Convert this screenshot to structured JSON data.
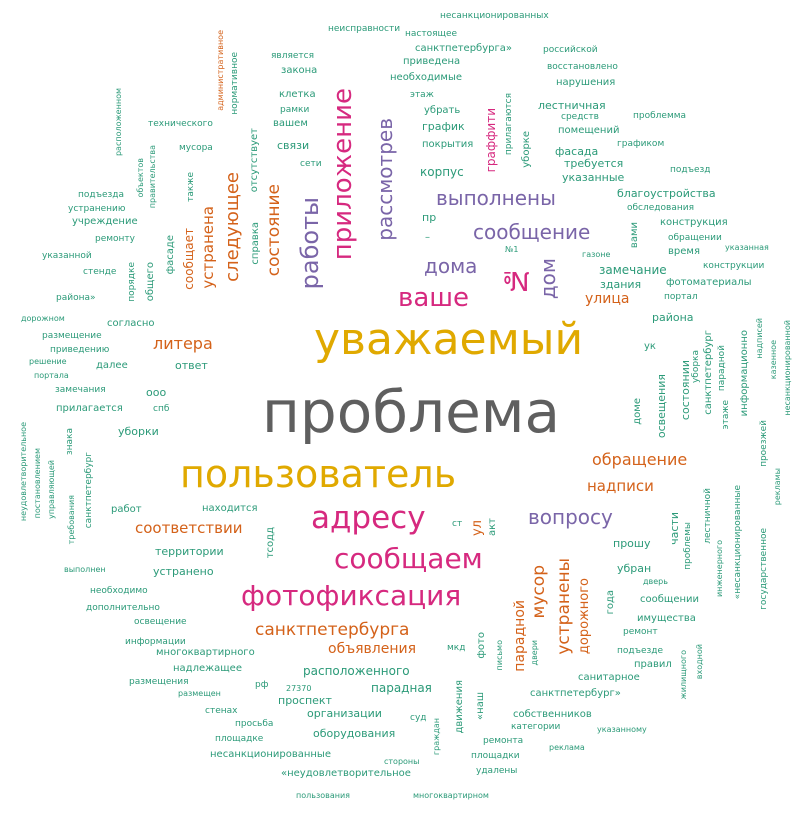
{
  "palette": {
    "grey": "#5f5f5f",
    "gold": "#e0a900",
    "magenta": "#d6297f",
    "purple": "#7a65a8",
    "orange": "#d4621a",
    "green": "#2b9a78"
  },
  "words": [
    {
      "text": "проблема",
      "color": "grey"
    },
    {
      "text": "уважаемый",
      "color": "gold"
    },
    {
      "text": "пользователь",
      "color": "gold"
    },
    {
      "text": "адресу",
      "color": "magenta"
    },
    {
      "text": "сообщаем",
      "color": "magenta"
    },
    {
      "text": "фотофиксация",
      "color": "magenta"
    },
    {
      "text": "ваше",
      "color": "magenta"
    },
    {
      "text": "приложение",
      "color": "magenta"
    },
    {
      "text": "№",
      "color": "magenta"
    },
    {
      "text": "работы",
      "color": "purple"
    },
    {
      "text": "рассмотрев",
      "color": "purple"
    },
    {
      "text": "выполнены",
      "color": "purple"
    },
    {
      "text": "сообщение",
      "color": "purple"
    },
    {
      "text": "дома",
      "color": "purple"
    },
    {
      "text": "дом",
      "color": "purple"
    },
    {
      "text": "вопросу",
      "color": "purple"
    },
    {
      "text": "следующее",
      "color": "orange"
    },
    {
      "text": "состояние",
      "color": "orange"
    },
    {
      "text": "устранена",
      "color": "orange"
    },
    {
      "text": "литера",
      "color": "orange"
    },
    {
      "text": "санктпетербурга",
      "color": "orange"
    },
    {
      "text": "обращение",
      "color": "orange"
    },
    {
      "text": "надписи",
      "color": "orange"
    },
    {
      "text": "соответствии",
      "color": "orange"
    },
    {
      "text": "мусор",
      "color": "orange"
    },
    {
      "text": "устранены",
      "color": "orange"
    },
    {
      "text": "улица",
      "color": "orange"
    },
    {
      "text": "объявления",
      "color": "orange"
    },
    {
      "text": "парадной",
      "color": "orange"
    },
    {
      "text": "дорожного",
      "color": "orange"
    },
    {
      "text": "ул",
      "color": "orange"
    },
    {
      "text": "неисправности",
      "color": "green"
    },
    {
      "text": "несанкционированных",
      "color": "green"
    },
    {
      "text": "настоящее",
      "color": "green"
    },
    {
      "text": "санктпетербурга»",
      "color": "green"
    },
    {
      "text": "российской",
      "color": "green"
    },
    {
      "text": "является",
      "color": "green"
    },
    {
      "text": "приведена",
      "color": "green"
    },
    {
      "text": "восстановлено",
      "color": "green"
    },
    {
      "text": "закона",
      "color": "green"
    },
    {
      "text": "необходимые",
      "color": "green"
    },
    {
      "text": "нарушения",
      "color": "green"
    },
    {
      "text": "клетка",
      "color": "green"
    },
    {
      "text": "этаж",
      "color": "green"
    },
    {
      "text": "рамки",
      "color": "green"
    },
    {
      "text": "убрать",
      "color": "green"
    },
    {
      "text": "лестничная",
      "color": "green"
    },
    {
      "text": "средств",
      "color": "green"
    },
    {
      "text": "проблемма",
      "color": "green"
    },
    {
      "text": "вашем",
      "color": "green"
    },
    {
      "text": "график",
      "color": "green"
    },
    {
      "text": "помещений",
      "color": "green"
    },
    {
      "text": "технического",
      "color": "green"
    },
    {
      "text": "мусора",
      "color": "green"
    },
    {
      "text": "связи",
      "color": "green"
    },
    {
      "text": "покрытия",
      "color": "green"
    },
    {
      "text": "графиком",
      "color": "green"
    },
    {
      "text": "фасада",
      "color": "green"
    },
    {
      "text": "сети",
      "color": "green"
    },
    {
      "text": "требуется",
      "color": "green"
    },
    {
      "text": "корпус",
      "color": "green"
    },
    {
      "text": "подъезд",
      "color": "green"
    },
    {
      "text": "указанные",
      "color": "green"
    },
    {
      "text": "благоустройства",
      "color": "green"
    },
    {
      "text": "подъезда",
      "color": "green"
    },
    {
      "text": "обследования",
      "color": "green"
    },
    {
      "text": "устранению",
      "color": "green"
    },
    {
      "text": "пр",
      "color": "green"
    },
    {
      "text": "конструкция",
      "color": "green"
    },
    {
      "text": "учреждение",
      "color": "green"
    },
    {
      "text": "ремонту",
      "color": "green"
    },
    {
      "text": "–",
      "color": "green"
    },
    {
      "text": "обращении",
      "color": "green"
    },
    {
      "text": "время",
      "color": "green"
    },
    {
      "text": "указанная",
      "color": "green"
    },
    {
      "text": "№1",
      "color": "green"
    },
    {
      "text": "указанной",
      "color": "green"
    },
    {
      "text": "газоне",
      "color": "green"
    },
    {
      "text": "конструкции",
      "color": "green"
    },
    {
      "text": "стенде",
      "color": "green"
    },
    {
      "text": "замечание",
      "color": "green"
    },
    {
      "text": "здания",
      "color": "green"
    },
    {
      "text": "фотоматериалы",
      "color": "green"
    },
    {
      "text": "района»",
      "color": "green"
    },
    {
      "text": "портал",
      "color": "green"
    },
    {
      "text": "дорожном",
      "color": "green"
    },
    {
      "text": "района",
      "color": "green"
    },
    {
      "text": "согласно",
      "color": "green"
    },
    {
      "text": "размещение",
      "color": "green"
    },
    {
      "text": "решение",
      "color": "green"
    },
    {
      "text": "приведению",
      "color": "green"
    },
    {
      "text": "далее",
      "color": "green"
    },
    {
      "text": "ответ",
      "color": "green"
    },
    {
      "text": "портала",
      "color": "green"
    },
    {
      "text": "ук",
      "color": "green"
    },
    {
      "text": "замечания",
      "color": "green"
    },
    {
      "text": "ооо",
      "color": "green"
    },
    {
      "text": "прилагается",
      "color": "green"
    },
    {
      "text": "спб",
      "color": "green"
    },
    {
      "text": "уборки",
      "color": "green"
    },
    {
      "text": "работ",
      "color": "green"
    },
    {
      "text": "находится",
      "color": "green"
    },
    {
      "text": "ст",
      "color": "green"
    },
    {
      "text": "акт",
      "color": "green"
    },
    {
      "text": "территории",
      "color": "green"
    },
    {
      "text": "прошу",
      "color": "green"
    },
    {
      "text": "устранено",
      "color": "green"
    },
    {
      "text": "убран",
      "color": "green"
    },
    {
      "text": "выполнен",
      "color": "green"
    },
    {
      "text": "необходимо",
      "color": "green"
    },
    {
      "text": "дверь",
      "color": "green"
    },
    {
      "text": "дополнительно",
      "color": "green"
    },
    {
      "text": "сообщении",
      "color": "green"
    },
    {
      "text": "освещение",
      "color": "green"
    },
    {
      "text": "имущества",
      "color": "green"
    },
    {
      "text": "информации",
      "color": "green"
    },
    {
      "text": "ремонт",
      "color": "green"
    },
    {
      "text": "многоквартирного",
      "color": "green"
    },
    {
      "text": "надлежащее",
      "color": "green"
    },
    {
      "text": "мкд",
      "color": "green"
    },
    {
      "text": "подъезде",
      "color": "green"
    },
    {
      "text": "правил",
      "color": "green"
    },
    {
      "text": "размещения",
      "color": "green"
    },
    {
      "text": "расположенного",
      "color": "green"
    },
    {
      "text": "санитарное",
      "color": "green"
    },
    {
      "text": "размещен",
      "color": "green"
    },
    {
      "text": "рф",
      "color": "green"
    },
    {
      "text": "парадная",
      "color": "green"
    },
    {
      "text": "27370",
      "color": "green"
    },
    {
      "text": "санктпетербург»",
      "color": "green"
    },
    {
      "text": "проспект",
      "color": "green"
    },
    {
      "text": "стенах",
      "color": "green"
    },
    {
      "text": "организации",
      "color": "green"
    },
    {
      "text": "собственников",
      "color": "green"
    },
    {
      "text": "просьба",
      "color": "green"
    },
    {
      "text": "суд",
      "color": "green"
    },
    {
      "text": "категории",
      "color": "green"
    },
    {
      "text": "площадке",
      "color": "green"
    },
    {
      "text": "оборудования",
      "color": "green"
    },
    {
      "text": "указанному",
      "color": "green"
    },
    {
      "text": "ремонта",
      "color": "green"
    },
    {
      "text": "несанкционированные",
      "color": "green"
    },
    {
      "text": "площадки",
      "color": "green"
    },
    {
      "text": "реклама",
      "color": "green"
    },
    {
      "text": "стороны",
      "color": "green"
    },
    {
      "text": "«неудовлетворительное",
      "color": "green"
    },
    {
      "text": "удалены",
      "color": "green"
    },
    {
      "text": "пользования",
      "color": "green"
    },
    {
      "text": "многоквартирном",
      "color": "green"
    },
    {
      "text": "административное",
      "color": "orange"
    },
    {
      "text": "нормативное",
      "color": "green"
    },
    {
      "text": "расположенном",
      "color": "green"
    },
    {
      "text": "объектов",
      "color": "green"
    },
    {
      "text": "правительства",
      "color": "green"
    },
    {
      "text": "также",
      "color": "green"
    },
    {
      "text": "отсутствует",
      "color": "green"
    },
    {
      "text": "справка",
      "color": "green"
    },
    {
      "text": "порядке",
      "color": "green"
    },
    {
      "text": "общего",
      "color": "green"
    },
    {
      "text": "фасаде",
      "color": "green"
    },
    {
      "text": "сообщает",
      "color": "orange"
    },
    {
      "text": "граффити",
      "color": "magenta"
    },
    {
      "text": "прилагаются",
      "color": "green"
    },
    {
      "text": "уборке",
      "color": "green"
    },
    {
      "text": "вами",
      "color": "green"
    },
    {
      "text": "доме",
      "color": "green"
    },
    {
      "text": "освещения",
      "color": "green"
    },
    {
      "text": "состоянии",
      "color": "green"
    },
    {
      "text": "уборка",
      "color": "green"
    },
    {
      "text": "санктпетербург",
      "color": "green"
    },
    {
      "text": "парадной",
      "color": "green"
    },
    {
      "text": "этаже",
      "color": "green"
    },
    {
      "text": "информационно",
      "color": "green"
    },
    {
      "text": "надписей",
      "color": "green"
    },
    {
      "text": "казенное",
      "color": "green"
    },
    {
      "text": "несанкционированной",
      "color": "green"
    },
    {
      "text": "неудовлетворительное",
      "color": "green"
    },
    {
      "text": "постановлением",
      "color": "green"
    },
    {
      "text": "управляющей",
      "color": "green"
    },
    {
      "text": "требования",
      "color": "green"
    },
    {
      "text": "знака",
      "color": "green"
    },
    {
      "text": "санктпетербург",
      "color": "green"
    },
    {
      "text": "тсодд",
      "color": "green"
    },
    {
      "text": "проезжей",
      "color": "green"
    },
    {
      "text": "рекламы",
      "color": "green"
    },
    {
      "text": "части",
      "color": "green"
    },
    {
      "text": "проблемы",
      "color": "green"
    },
    {
      "text": "лестничной",
      "color": "green"
    },
    {
      "text": "инженерного",
      "color": "green"
    },
    {
      "text": "«несанкционированные",
      "color": "green"
    },
    {
      "text": "государственное",
      "color": "green"
    },
    {
      "text": "года",
      "color": "green"
    },
    {
      "text": "фото",
      "color": "green"
    },
    {
      "text": "двери",
      "color": "green"
    },
    {
      "text": "письмо",
      "color": "green"
    },
    {
      "text": "движения",
      "color": "green"
    },
    {
      "text": "«наш",
      "color": "green"
    },
    {
      "text": "граждан",
      "color": "green"
    },
    {
      "text": "жилищного",
      "color": "green"
    },
    {
      "text": "входной",
      "color": "green"
    }
  ]
}
